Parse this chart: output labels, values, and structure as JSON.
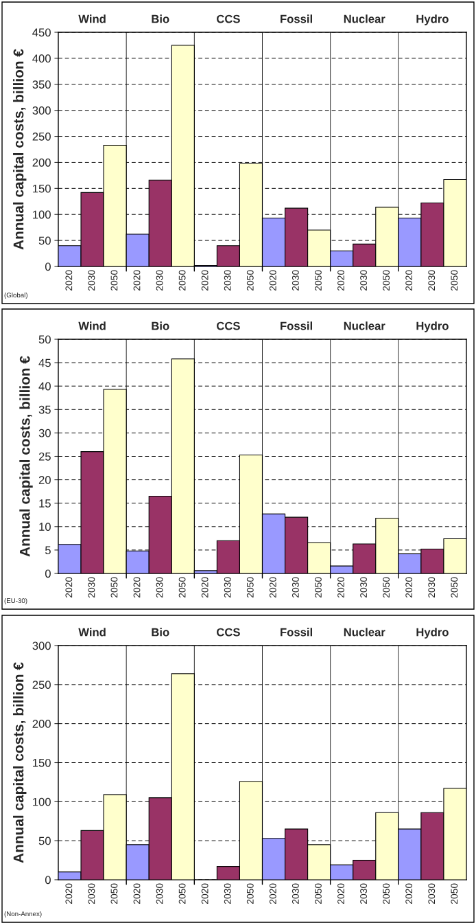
{
  "chart_data": [
    {
      "type": "bar",
      "ylabel": "Annual capital costs, billion €",
      "categories": [
        "2020",
        "2030",
        "2050",
        "2020",
        "2030",
        "2050",
        "2020",
        "2030",
        "2050",
        "2020",
        "2030",
        "2050",
        "2020",
        "2030",
        "2050",
        "2020",
        "2030",
        "2050"
      ],
      "values": [
        40,
        142,
        233,
        62,
        166,
        425,
        2,
        40,
        198,
        93,
        112,
        70,
        30,
        43,
        114,
        93,
        122,
        167
      ],
      "colors": [
        "#9999ff",
        "#993366",
        "#ffffcc",
        "#9999ff",
        "#993366",
        "#ffffcc",
        "#9999ff",
        "#993366",
        "#ffffcc",
        "#9999ff",
        "#993366",
        "#ffffcc",
        "#9999ff",
        "#993366",
        "#ffffcc",
        "#9999ff",
        "#993366",
        "#ffffcc"
      ],
      "ylim": [
        0,
        450
      ],
      "yticks": [
        0,
        50,
        100,
        150,
        200,
        250,
        300,
        350,
        400,
        450
      ],
      "grid": "y",
      "annotations": [
        "Wind",
        "Bio",
        "CCS",
        "Fossil",
        "Nuclear",
        "Hydro",
        "(Global)"
      ]
    },
    {
      "type": "bar",
      "ylabel": "Annual capital costs, billion €",
      "categories": [
        "2020",
        "2030",
        "2050",
        "2020",
        "2030",
        "2050",
        "2020",
        "2030",
        "2050",
        "2020",
        "2030",
        "2050",
        "2020",
        "2030",
        "2050",
        "2020",
        "2030",
        "2050"
      ],
      "values": [
        6.2,
        26,
        39.3,
        4.8,
        16.5,
        45.8,
        0.6,
        7,
        25.3,
        12.7,
        12,
        6.6,
        1.6,
        6.3,
        11.8,
        4.2,
        5.2,
        7.4
      ],
      "colors": [
        "#9999ff",
        "#993366",
        "#ffffcc",
        "#9999ff",
        "#993366",
        "#ffffcc",
        "#9999ff",
        "#993366",
        "#ffffcc",
        "#9999ff",
        "#993366",
        "#ffffcc",
        "#9999ff",
        "#993366",
        "#ffffcc",
        "#9999ff",
        "#993366",
        "#ffffcc"
      ],
      "ylim": [
        0,
        50
      ],
      "yticks": [
        0,
        5,
        10,
        15,
        20,
        25,
        30,
        35,
        40,
        45,
        50
      ],
      "grid": "y",
      "annotations": [
        "Wind",
        "Bio",
        "CCS",
        "Fossil",
        "Nuclear",
        "Hydro",
        "(EU-30)"
      ]
    },
    {
      "type": "bar",
      "ylabel": "Annual capital costs, billion €",
      "categories": [
        "2020",
        "2030",
        "2050",
        "2020",
        "2030",
        "2050",
        "2020",
        "2030",
        "2050",
        "2020",
        "2030",
        "2050",
        "2020",
        "2030",
        "2050",
        "2020",
        "2030",
        "2050"
      ],
      "values": [
        10,
        63,
        109,
        45,
        105,
        264,
        0,
        17,
        126,
        53,
        65,
        45,
        19,
        25,
        86,
        65,
        86,
        117
      ],
      "colors": [
        "#9999ff",
        "#993366",
        "#ffffcc",
        "#9999ff",
        "#993366",
        "#ffffcc",
        "#9999ff",
        "#993366",
        "#ffffcc",
        "#9999ff",
        "#993366",
        "#ffffcc",
        "#9999ff",
        "#993366",
        "#ffffcc",
        "#9999ff",
        "#993366",
        "#ffffcc"
      ],
      "ylim": [
        0,
        300
      ],
      "yticks": [
        0,
        50,
        100,
        150,
        200,
        250,
        300
      ],
      "grid": "y",
      "annotations": [
        "Wind",
        "Bio",
        "CCS",
        "Fossil",
        "Nuclear",
        "Hydro",
        "(Non-Annex)"
      ]
    }
  ]
}
